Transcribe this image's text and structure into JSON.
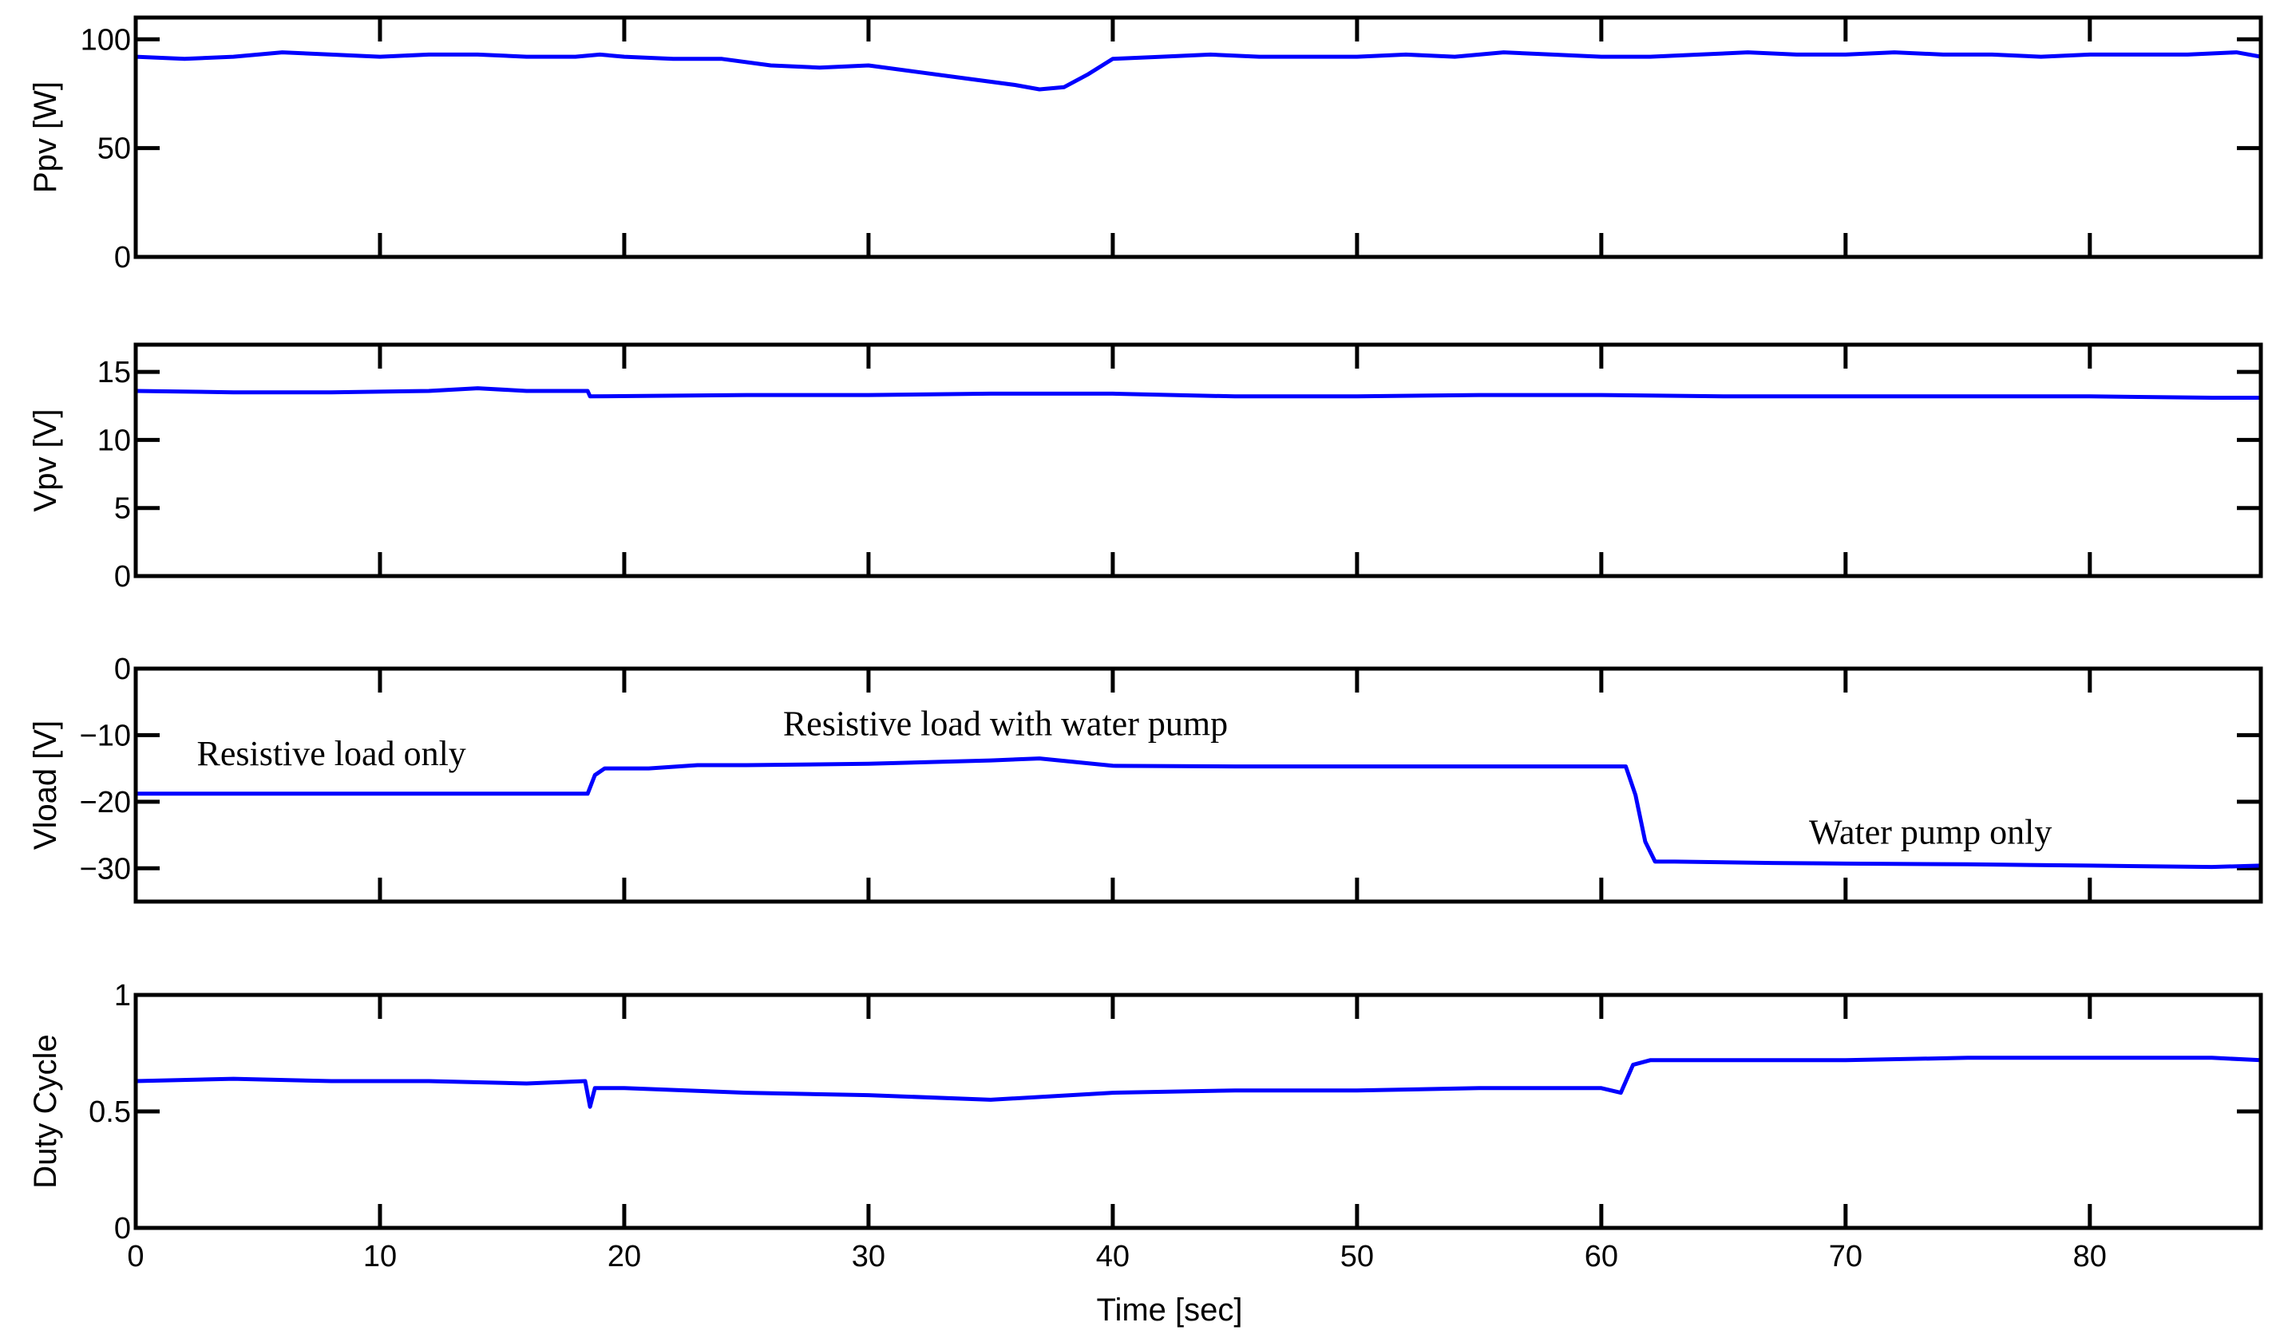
{
  "chart_data": {
    "type": "line",
    "xlabel": "Time [sec]",
    "xlim": [
      0,
      87
    ],
    "xticks": [
      0,
      10,
      20,
      30,
      40,
      50,
      60,
      70,
      80
    ],
    "line_color": "#0000ff",
    "panels": [
      {
        "id": "ppv",
        "ylabel": "Ppv [W]",
        "ylim": [
          0,
          110
        ],
        "yticks": [
          0,
          50,
          100
        ],
        "series": [
          {
            "x": [
              0,
              2,
              4,
              6,
              8,
              10,
              12,
              14,
              16,
              18,
              19,
              20,
              22,
              24,
              26,
              28,
              30,
              32,
              34,
              36,
              37,
              38,
              39,
              40,
              42,
              44,
              46,
              48,
              50,
              52,
              54,
              56,
              58,
              60,
              62,
              64,
              66,
              68,
              70,
              72,
              74,
              76,
              78,
              80,
              82,
              84,
              86,
              87
            ],
            "y": [
              92,
              91,
              92,
              94,
              93,
              92,
              93,
              93,
              92,
              92,
              93,
              92,
              91,
              91,
              88,
              87,
              88,
              85,
              82,
              79,
              77,
              78,
              84,
              91,
              92,
              93,
              92,
              92,
              92,
              93,
              92,
              94,
              93,
              92,
              92,
              93,
              94,
              93,
              93,
              94,
              93,
              93,
              92,
              93,
              93,
              93,
              94,
              92
            ]
          }
        ]
      },
      {
        "id": "vpv",
        "ylabel": "Vpv [V]",
        "ylim": [
          0,
          17
        ],
        "yticks": [
          0,
          5,
          10,
          15
        ],
        "series": [
          {
            "x": [
              0,
              4,
              8,
              12,
              14,
              16,
              18.5,
              18.6,
              25,
              30,
              35,
              40,
              45,
              50,
              55,
              60,
              65,
              70,
              75,
              80,
              85,
              87
            ],
            "y": [
              13.6,
              13.5,
              13.5,
              13.6,
              13.8,
              13.6,
              13.6,
              13.2,
              13.3,
              13.3,
              13.4,
              13.4,
              13.2,
              13.2,
              13.3,
              13.3,
              13.2,
              13.2,
              13.2,
              13.2,
              13.1,
              13.1
            ]
          }
        ]
      },
      {
        "id": "vload",
        "ylabel": "Vload  [V]",
        "ylim": [
          -35,
          0
        ],
        "yticks": [
          -30,
          -20,
          -10,
          0
        ],
        "series": [
          {
            "x": [
              0,
              18.5,
              18.8,
              19.2,
              21,
              23,
              25,
              30,
              35,
              37,
              40,
              45,
              50,
              55,
              60,
              61,
              61.4,
              61.8,
              62.2,
              63,
              67,
              70,
              75,
              80,
              85,
              87
            ],
            "y": [
              -18.8,
              -18.8,
              -16,
              -15,
              -15,
              -14.5,
              -14.5,
              -14.3,
              -13.8,
              -13.5,
              -14.6,
              -14.7,
              -14.7,
              -14.7,
              -14.7,
              -14.7,
              -19,
              -26,
              -29,
              -29,
              -29.2,
              -29.3,
              -29.4,
              -29.6,
              -29.8,
              -29.6
            ]
          }
        ],
        "annotations": [
          {
            "text": "Resistive load only",
            "x": 2.5,
            "y": -14.5
          },
          {
            "text": "Resistive load with water pump",
            "x": 26.5,
            "y": -10
          },
          {
            "text": "Water pump only",
            "x": 68.5,
            "y": -26.3
          }
        ]
      },
      {
        "id": "duty",
        "ylabel": "Duty Cycle",
        "ylim": [
          0,
          1
        ],
        "yticks": [
          0,
          0.5,
          1
        ],
        "series": [
          {
            "x": [
              0,
              4,
              8,
              12,
              16,
              18.4,
              18.6,
              18.8,
              20,
              25,
              30,
              35,
              40,
              45,
              50,
              55,
              60,
              60.8,
              61.3,
              62,
              65,
              70,
              75,
              80,
              85,
              87
            ],
            "y": [
              0.63,
              0.64,
              0.63,
              0.63,
              0.62,
              0.63,
              0.52,
              0.6,
              0.6,
              0.58,
              0.57,
              0.55,
              0.58,
              0.59,
              0.59,
              0.6,
              0.6,
              0.58,
              0.7,
              0.72,
              0.72,
              0.72,
              0.73,
              0.73,
              0.73,
              0.72
            ]
          }
        ]
      }
    ]
  }
}
